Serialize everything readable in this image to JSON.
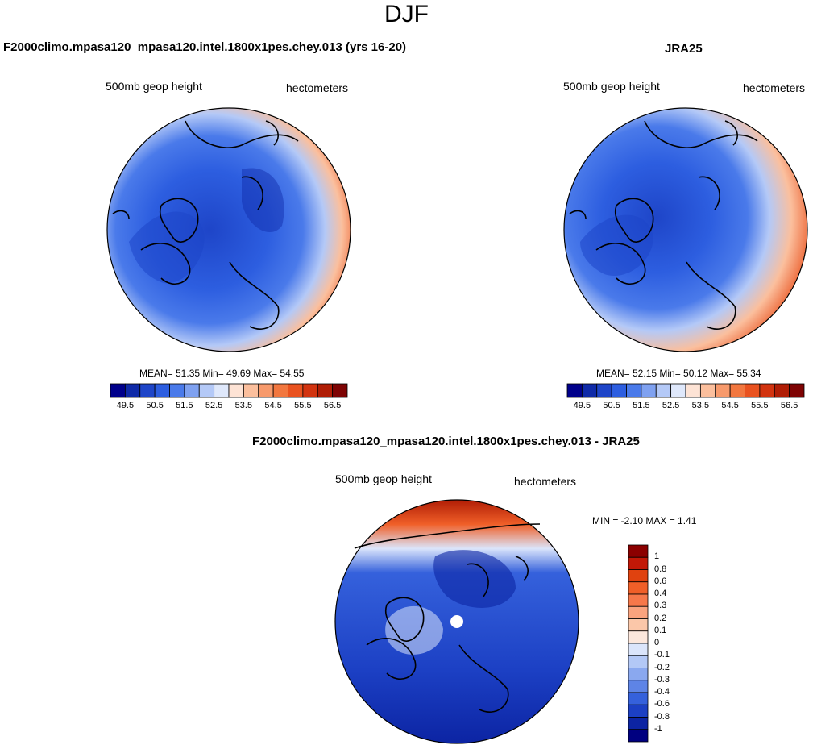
{
  "figure": {
    "title": "DJF"
  },
  "panels": [
    {
      "id": "model",
      "title": "F2000climo.mpasa120_mpasa120.intel.1800x1pes.chey.013 (yrs 16-20)",
      "variable": "500mb geop height",
      "units": "hectometers",
      "stats": "MEAN=  51.35  Min=  49.69  Max=  54.55",
      "colorbar": {
        "labels": [
          "49.5",
          "50.5",
          "51.5",
          "52.5",
          "53.5",
          "54.5",
          "55.5",
          "56.5"
        ],
        "colors": [
          "#00008b",
          "#0f2aa8",
          "#1e45c8",
          "#2d5ee0",
          "#4a7aea",
          "#7fa1f0",
          "#b4c9f7",
          "#dfe8fb",
          "#fde3d5",
          "#fbbf9d",
          "#f79a6c",
          "#f2773f",
          "#e9521f",
          "#d2330f",
          "#b01d05",
          "#7e0303"
        ]
      }
    },
    {
      "id": "obs",
      "title": "JRA25",
      "variable": "500mb geop height",
      "units": "hectometers",
      "stats": "MEAN=  52.15  Min=  50.12  Max=  55.34",
      "colorbar": {
        "labels": [
          "49.5",
          "50.5",
          "51.5",
          "52.5",
          "53.5",
          "54.5",
          "55.5",
          "56.5"
        ],
        "colors": [
          "#00008b",
          "#0f2aa8",
          "#1e45c8",
          "#2d5ee0",
          "#4a7aea",
          "#7fa1f0",
          "#b4c9f7",
          "#dfe8fb",
          "#fde3d5",
          "#fbbf9d",
          "#f79a6c",
          "#f2773f",
          "#e9521f",
          "#d2330f",
          "#b01d05",
          "#7e0303"
        ]
      }
    },
    {
      "id": "diff",
      "title": "F2000climo.mpasa120_mpasa120.intel.1800x1pes.chey.013 - JRA25",
      "variable": "500mb geop height",
      "units": "hectometers",
      "stats": "MIN =  -2.10 MAX =   1.41",
      "colorbar": {
        "labels": [
          "1",
          "0.8",
          "0.6",
          "0.4",
          "0.3",
          "0.2",
          "0.1",
          "0",
          "-0.1",
          "-0.2",
          "-0.3",
          "-0.4",
          "-0.6",
          "-0.8",
          "-1"
        ],
        "colors": [
          "#8b0000",
          "#c21807",
          "#e0420f",
          "#f05f28",
          "#f6784a",
          "#f9a37e",
          "#fbc7a9",
          "#fce7dc",
          "#dbe5fb",
          "#b3c8f6",
          "#8aa8ef",
          "#5e84e6",
          "#3561dc",
          "#1c40c4",
          "#0c24a3",
          "#000080"
        ]
      }
    }
  ]
}
